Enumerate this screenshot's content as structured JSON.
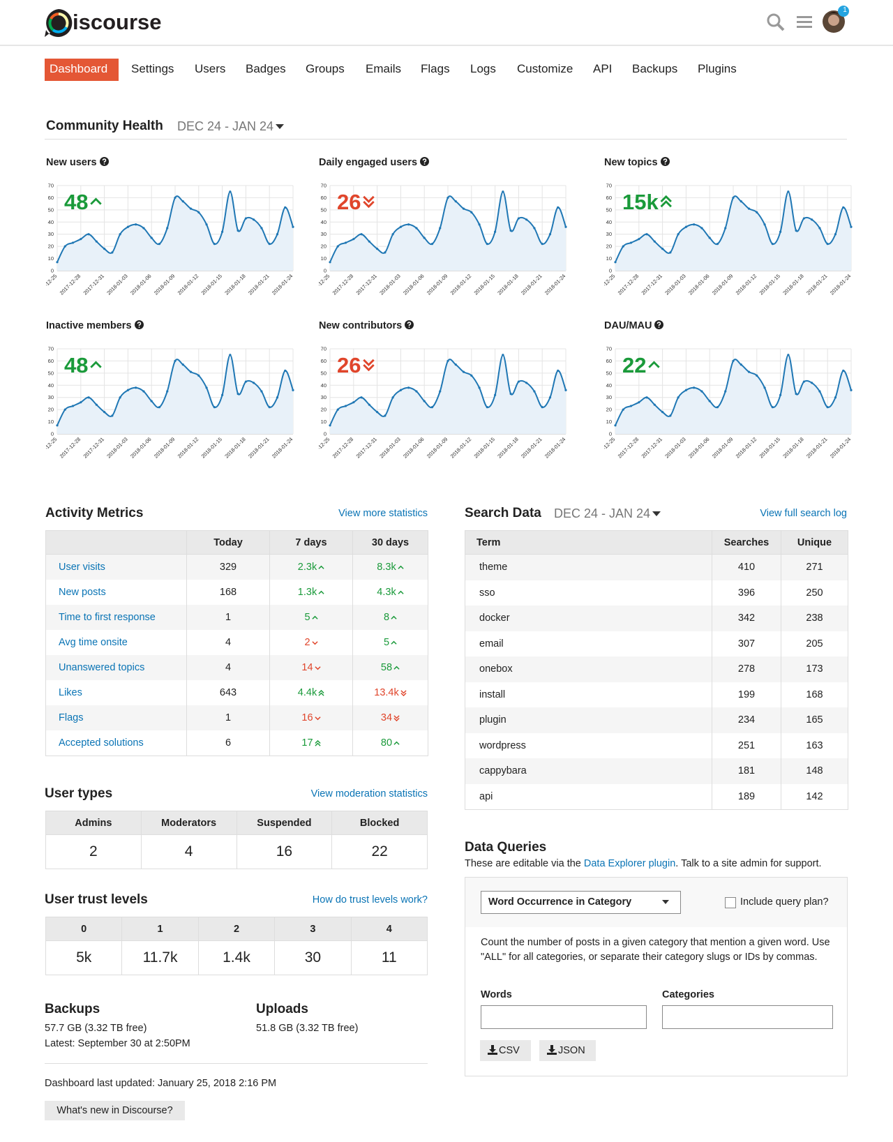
{
  "header": {
    "logo": "iscourse",
    "notifications": 1
  },
  "nav": [
    "Dashboard",
    "Settings",
    "Users",
    "Badges",
    "Groups",
    "Emails",
    "Flags",
    "Logs",
    "Customize",
    "API",
    "Backups",
    "Plugins"
  ],
  "community_health": {
    "title": "Community Health",
    "range": "DEC 24 - JAN 24"
  },
  "chart_data": [
    {
      "type": "line",
      "title": "New users",
      "annotation": "48",
      "trend": "up",
      "annotation_color": "#1a9a3a",
      "color": "#1f77b4",
      "ylim": [
        0,
        70
      ],
      "yticks": [
        0,
        10,
        20,
        30,
        40,
        50,
        60,
        70
      ],
      "grid": true,
      "categories": [
        "2017-12-25",
        null,
        null,
        "2017-12-28",
        null,
        null,
        "2017-12-31",
        null,
        null,
        "2018-01-03",
        null,
        null,
        "2018-01-06",
        null,
        null,
        "2018-01-09",
        null,
        null,
        "2018-01-12",
        null,
        null,
        "2018-01-15",
        null,
        null,
        "2018-01-18",
        null,
        null,
        "2018-01-21",
        null,
        null,
        "2018-01-24"
      ],
      "values": [
        7,
        20,
        23,
        26,
        30,
        24,
        18,
        15,
        30,
        36,
        38,
        35,
        27,
        22,
        35,
        60,
        57,
        51,
        48,
        38,
        22,
        32,
        65,
        33,
        43,
        42,
        35,
        22,
        30,
        52,
        36
      ]
    },
    {
      "type": "line",
      "title": "Daily engaged users",
      "annotation": "26",
      "trend": "double-down",
      "annotation_color": "#e0452b",
      "color": "#1f77b4",
      "ylim": [
        0,
        70
      ],
      "yticks": [
        0,
        10,
        20,
        30,
        40,
        50,
        60,
        70
      ],
      "grid": true,
      "categories": [
        "2017-12-25",
        null,
        null,
        "2017-12-28",
        null,
        null,
        "2017-12-31",
        null,
        null,
        "2018-01-03",
        null,
        null,
        "2018-01-06",
        null,
        null,
        "2018-01-09",
        null,
        null,
        "2018-01-12",
        null,
        null,
        "2018-01-15",
        null,
        null,
        "2018-01-18",
        null,
        null,
        "2018-01-21",
        null,
        null,
        "2018-01-24"
      ],
      "values": [
        7,
        20,
        23,
        26,
        30,
        24,
        18,
        15,
        30,
        36,
        38,
        35,
        27,
        22,
        35,
        60,
        57,
        51,
        48,
        38,
        22,
        32,
        65,
        33,
        43,
        42,
        35,
        22,
        30,
        52,
        36
      ]
    },
    {
      "type": "line",
      "title": "New topics",
      "annotation": "15k",
      "trend": "double-up",
      "annotation_color": "#1a9a3a",
      "color": "#1f77b4",
      "ylim": [
        0,
        70
      ],
      "yticks": [
        0,
        10,
        20,
        30,
        40,
        50,
        60,
        70
      ],
      "grid": true,
      "categories": [
        "2017-12-25",
        null,
        null,
        "2017-12-28",
        null,
        null,
        "2017-12-31",
        null,
        null,
        "2018-01-03",
        null,
        null,
        "2018-01-06",
        null,
        null,
        "2018-01-09",
        null,
        null,
        "2018-01-12",
        null,
        null,
        "2018-01-15",
        null,
        null,
        "2018-01-18",
        null,
        null,
        "2018-01-21",
        null,
        null,
        "2018-01-24"
      ],
      "values": [
        7,
        20,
        23,
        26,
        30,
        24,
        18,
        15,
        30,
        36,
        38,
        35,
        27,
        22,
        35,
        60,
        57,
        51,
        48,
        38,
        22,
        32,
        65,
        33,
        43,
        42,
        35,
        22,
        30,
        52,
        36
      ]
    },
    {
      "type": "line",
      "title": "Inactive members",
      "annotation": "48",
      "trend": "up",
      "annotation_color": "#1a9a3a",
      "color": "#1f77b4",
      "ylim": [
        0,
        70
      ],
      "yticks": [
        0,
        10,
        20,
        30,
        40,
        50,
        60,
        70
      ],
      "grid": true,
      "categories": [
        "2017-12-25",
        null,
        null,
        "2017-12-28",
        null,
        null,
        "2017-12-31",
        null,
        null,
        "2018-01-03",
        null,
        null,
        "2018-01-06",
        null,
        null,
        "2018-01-09",
        null,
        null,
        "2018-01-12",
        null,
        null,
        "2018-01-15",
        null,
        null,
        "2018-01-18",
        null,
        null,
        "2018-01-21",
        null,
        null,
        "2018-01-24"
      ],
      "values": [
        7,
        20,
        23,
        26,
        30,
        24,
        18,
        15,
        30,
        36,
        38,
        35,
        27,
        22,
        35,
        60,
        57,
        51,
        48,
        38,
        22,
        32,
        65,
        33,
        43,
        42,
        35,
        22,
        30,
        52,
        36
      ]
    },
    {
      "type": "line",
      "title": "New contributors",
      "annotation": "26",
      "trend": "double-down",
      "annotation_color": "#e0452b",
      "color": "#1f77b4",
      "ylim": [
        0,
        70
      ],
      "yticks": [
        0,
        10,
        20,
        30,
        40,
        50,
        60,
        70
      ],
      "grid": true,
      "categories": [
        "2017-12-25",
        null,
        null,
        "2017-12-28",
        null,
        null,
        "2017-12-31",
        null,
        null,
        "2018-01-03",
        null,
        null,
        "2018-01-06",
        null,
        null,
        "2018-01-09",
        null,
        null,
        "2018-01-12",
        null,
        null,
        "2018-01-15",
        null,
        null,
        "2018-01-18",
        null,
        null,
        "2018-01-21",
        null,
        null,
        "2018-01-24"
      ],
      "values": [
        7,
        20,
        23,
        26,
        30,
        24,
        18,
        15,
        30,
        36,
        38,
        35,
        27,
        22,
        35,
        60,
        57,
        51,
        48,
        38,
        22,
        32,
        65,
        33,
        43,
        42,
        35,
        22,
        30,
        52,
        36
      ]
    },
    {
      "type": "line",
      "title": "DAU/MAU",
      "annotation": "22",
      "trend": "up",
      "annotation_color": "#1a9a3a",
      "color": "#1f77b4",
      "ylim": [
        0,
        70
      ],
      "yticks": [
        0,
        10,
        20,
        30,
        40,
        50,
        60,
        70
      ],
      "grid": true,
      "categories": [
        "2017-12-25",
        null,
        null,
        "2017-12-28",
        null,
        null,
        "2017-12-31",
        null,
        null,
        "2018-01-03",
        null,
        null,
        "2018-01-06",
        null,
        null,
        "2018-01-09",
        null,
        null,
        "2018-01-12",
        null,
        null,
        "2018-01-15",
        null,
        null,
        "2018-01-18",
        null,
        null,
        "2018-01-21",
        null,
        null,
        "2018-01-24"
      ],
      "values": [
        7,
        20,
        23,
        26,
        30,
        24,
        18,
        15,
        30,
        36,
        38,
        35,
        27,
        22,
        35,
        60,
        57,
        51,
        48,
        38,
        22,
        32,
        65,
        33,
        43,
        42,
        35,
        22,
        30,
        52,
        36
      ]
    }
  ],
  "activity_metrics": {
    "title": "Activity Metrics",
    "link": "View more statistics",
    "columns": [
      "Today",
      "7 days",
      "30 days"
    ],
    "rows": [
      {
        "label": "User visits",
        "today": 329,
        "week": {
          "text": "2.3k",
          "trend": "up"
        },
        "month": {
          "text": "8.3k",
          "trend": "up"
        }
      },
      {
        "label": "New posts",
        "today": 168,
        "week": {
          "text": "1.3k",
          "trend": "up"
        },
        "month": {
          "text": "4.3k",
          "trend": "up"
        }
      },
      {
        "label": "Time to first response",
        "today": 1,
        "week": {
          "text": 5,
          "trend": "up"
        },
        "month": {
          "text": 8,
          "trend": "up"
        }
      },
      {
        "label": "Avg time onsite",
        "today": 4,
        "week": {
          "text": 2,
          "trend": "down"
        },
        "month": {
          "text": 5,
          "trend": "up"
        }
      },
      {
        "label": "Unanswered topics",
        "today": 4,
        "week": {
          "text": 14,
          "trend": "down"
        },
        "month": {
          "text": 58,
          "trend": "up"
        }
      },
      {
        "label": "Likes",
        "today": 643,
        "week": {
          "text": "4.4k",
          "trend": "double-up"
        },
        "month": {
          "text": "13.4k",
          "trend": "double-down"
        }
      },
      {
        "label": "Flags",
        "today": 1,
        "week": {
          "text": 16,
          "trend": "down"
        },
        "month": {
          "text": 34,
          "trend": "double-down"
        }
      },
      {
        "label": "Accepted solutions",
        "today": 6,
        "week": {
          "text": 17,
          "trend": "double-up"
        },
        "month": {
          "text": 80,
          "trend": "up"
        }
      }
    ]
  },
  "search_data": {
    "title": "Search Data",
    "range": "DEC 24 - JAN 24",
    "link": "View full search log",
    "columns": [
      "Term",
      "Searches",
      "Unique"
    ],
    "rows": [
      [
        "theme",
        410,
        271
      ],
      [
        "sso",
        396,
        250
      ],
      [
        "docker",
        342,
        238
      ],
      [
        "email",
        307,
        205
      ],
      [
        "onebox",
        278,
        173
      ],
      [
        "install",
        199,
        168
      ],
      [
        "plugin",
        234,
        165
      ],
      [
        "wordpress",
        251,
        163
      ],
      [
        "cappybara",
        181,
        148
      ],
      [
        "api",
        189,
        142
      ]
    ]
  },
  "user_types": {
    "title": "User types",
    "link": "View moderation statistics",
    "columns": [
      "Admins",
      "Moderators",
      "Suspended",
      "Blocked"
    ],
    "values": [
      2,
      4,
      16,
      22
    ]
  },
  "trust_levels": {
    "title": "User trust levels",
    "link": "How do trust levels work?",
    "columns": [
      0,
      1,
      2,
      3,
      4
    ],
    "values": [
      "5k",
      "11.7k",
      "1.4k",
      30,
      11
    ]
  },
  "backups": {
    "title": "Backups",
    "lines": [
      "57.7 GB (3.32 TB free)",
      "Latest: September 30 at 2:50PM"
    ]
  },
  "uploads": {
    "title": "Uploads",
    "lines": [
      "51.8 GB (3.32 TB free)"
    ]
  },
  "footer": {
    "updated": "Dashboard last updated: January 25, 2018 2:16 PM",
    "button": "What's new in Discourse?"
  },
  "data_queries": {
    "title": "Data Queries",
    "intro_before": "These are editable via the ",
    "intro_link": "Data Explorer plugin",
    "intro_after": ". Talk to a site admin for support.",
    "query": "Word Occurrence in Category",
    "checkbox": "Include query plan?",
    "description": "Count the number of posts in a given category that mention a given word. Use \"ALL\" for all categories, or separate their category slugs or IDs by commas.",
    "params": [
      "Words",
      "Categories"
    ],
    "buttons": [
      "CSV",
      "JSON"
    ]
  }
}
